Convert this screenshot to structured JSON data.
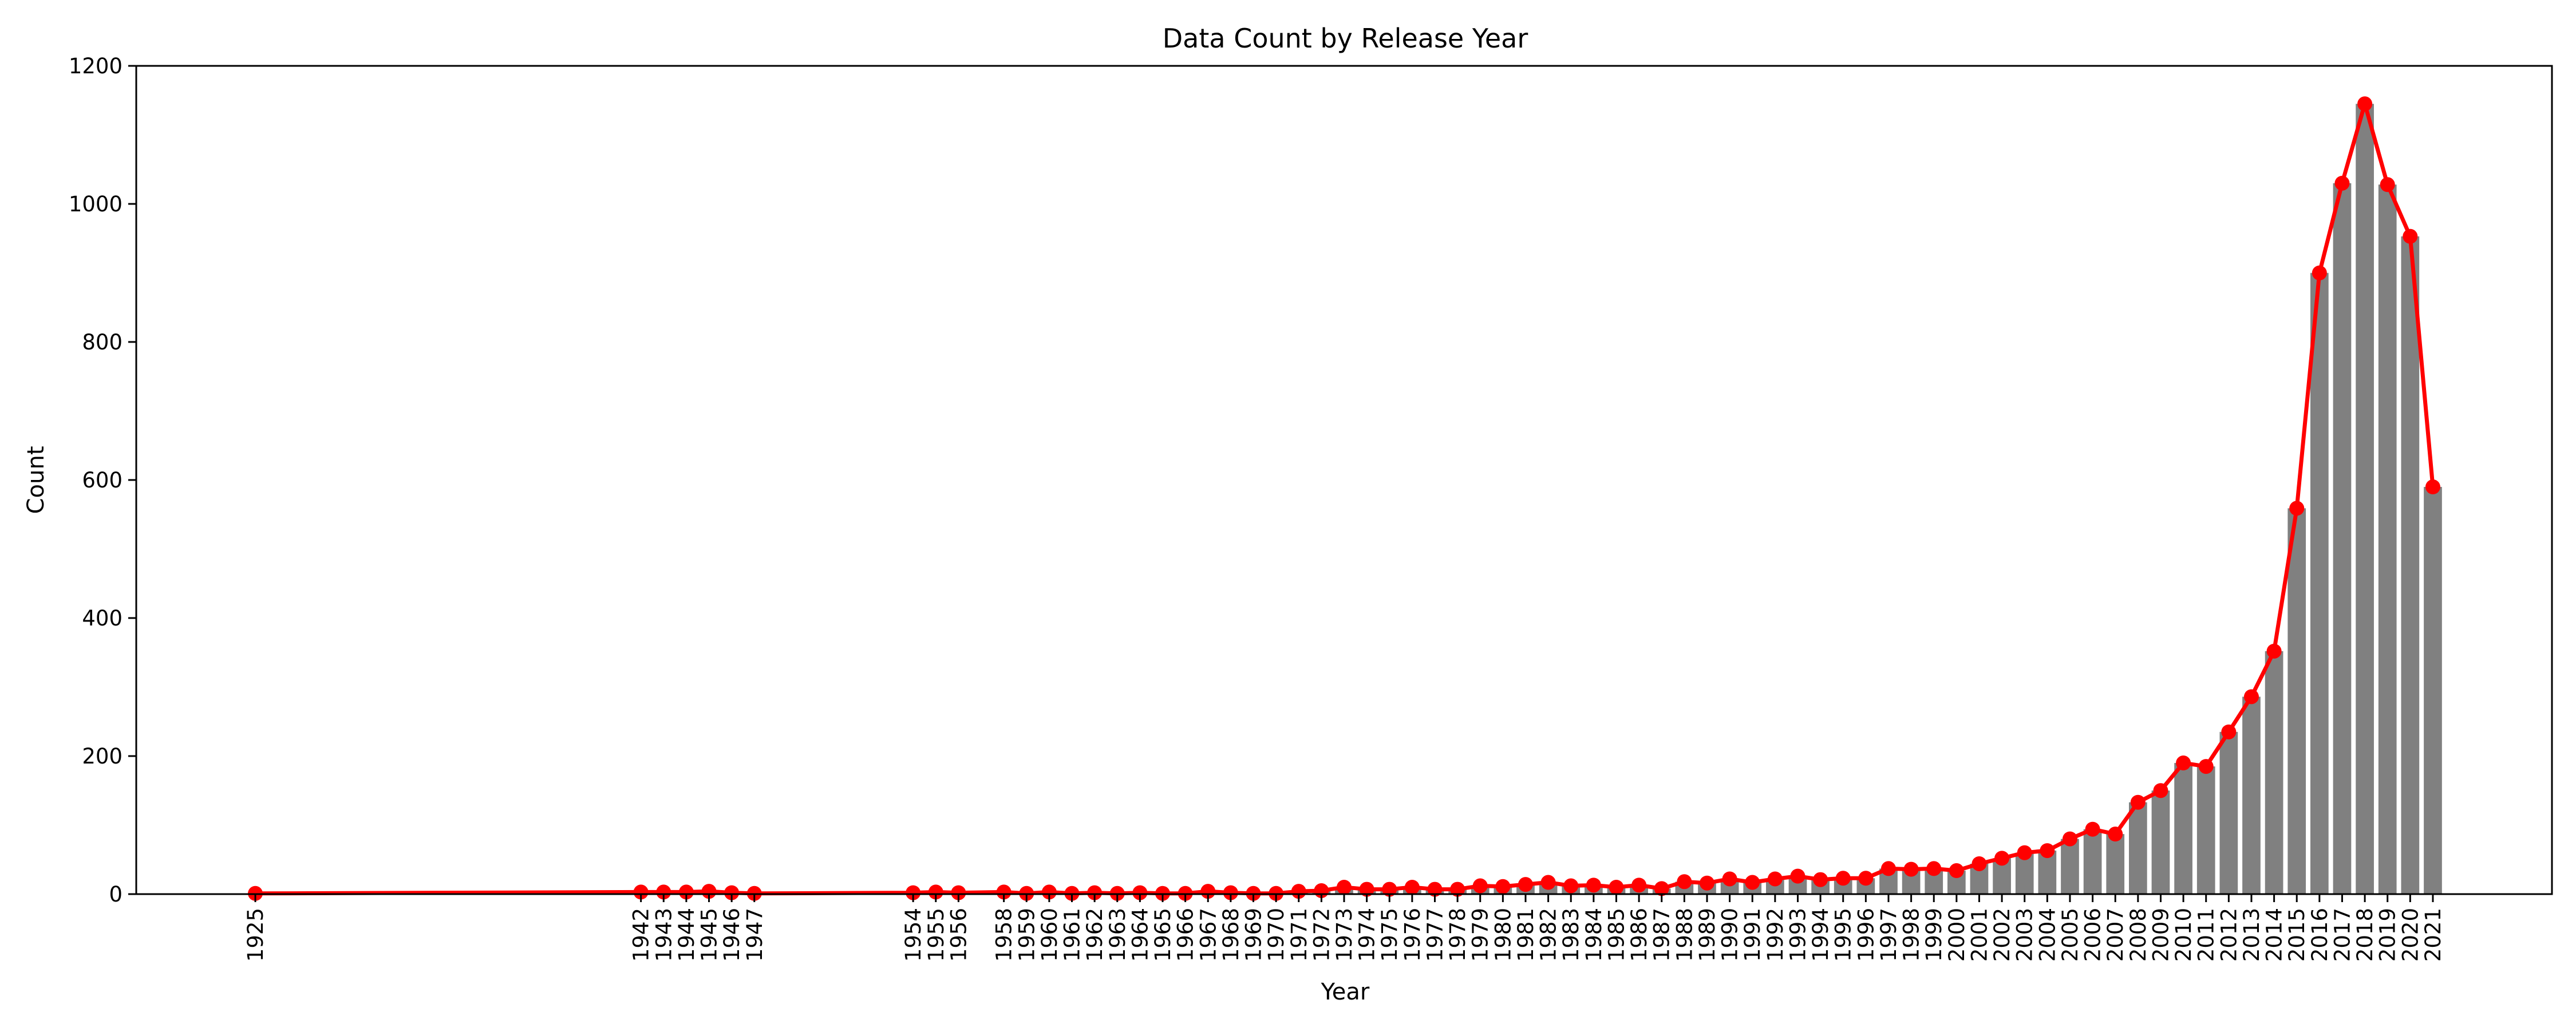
{
  "chart_data": {
    "type": "bar",
    "title": "Data Count by Release Year",
    "xlabel": "Year",
    "ylabel": "Count",
    "ylim": [
      0,
      1200
    ],
    "yticks": [
      0,
      200,
      400,
      600,
      800,
      1000,
      1200
    ],
    "x": [
      1925,
      1942,
      1943,
      1944,
      1945,
      1946,
      1947,
      1954,
      1955,
      1956,
      1958,
      1959,
      1960,
      1961,
      1962,
      1963,
      1964,
      1965,
      1966,
      1967,
      1968,
      1969,
      1970,
      1971,
      1972,
      1973,
      1974,
      1975,
      1976,
      1977,
      1978,
      1979,
      1980,
      1981,
      1982,
      1983,
      1984,
      1985,
      1986,
      1987,
      1988,
      1989,
      1990,
      1991,
      1992,
      1993,
      1994,
      1995,
      1996,
      1997,
      1998,
      1999,
      2000,
      2001,
      2002,
      2003,
      2004,
      2005,
      2006,
      2007,
      2008,
      2009,
      2010,
      2011,
      2012,
      2013,
      2014,
      2015,
      2016,
      2017,
      2018,
      2019,
      2020,
      2021
    ],
    "series": [
      {
        "name": "bars",
        "color": "#808080",
        "values": [
          1,
          3,
          3,
          3,
          4,
          2,
          1,
          2,
          3,
          2,
          3,
          1,
          3,
          1,
          2,
          1,
          2,
          1,
          1,
          4,
          2,
          1,
          1,
          4,
          5,
          10,
          7,
          7,
          10,
          7,
          7,
          12,
          11,
          14,
          17,
          12,
          13,
          10,
          13,
          8,
          18,
          16,
          22,
          17,
          22,
          26,
          21,
          23,
          23,
          37,
          36,
          37,
          34,
          44,
          52,
          60,
          63,
          80,
          94,
          87,
          133,
          150,
          190,
          185,
          235,
          286,
          352,
          559,
          900,
          1030,
          1145,
          1028,
          953,
          590
        ]
      },
      {
        "name": "line",
        "color": "#ff0000",
        "values": [
          1,
          3,
          3,
          3,
          4,
          2,
          1,
          2,
          3,
          2,
          3,
          1,
          3,
          1,
          2,
          1,
          2,
          1,
          1,
          4,
          2,
          1,
          1,
          4,
          5,
          10,
          7,
          7,
          10,
          7,
          7,
          12,
          11,
          14,
          17,
          12,
          13,
          10,
          13,
          8,
          18,
          16,
          22,
          17,
          22,
          26,
          21,
          23,
          23,
          37,
          36,
          37,
          34,
          44,
          52,
          60,
          63,
          80,
          94,
          87,
          133,
          150,
          190,
          185,
          235,
          286,
          352,
          559,
          900,
          1030,
          1145,
          1028,
          953,
          590
        ]
      }
    ],
    "grid": false,
    "legend": "none"
  }
}
